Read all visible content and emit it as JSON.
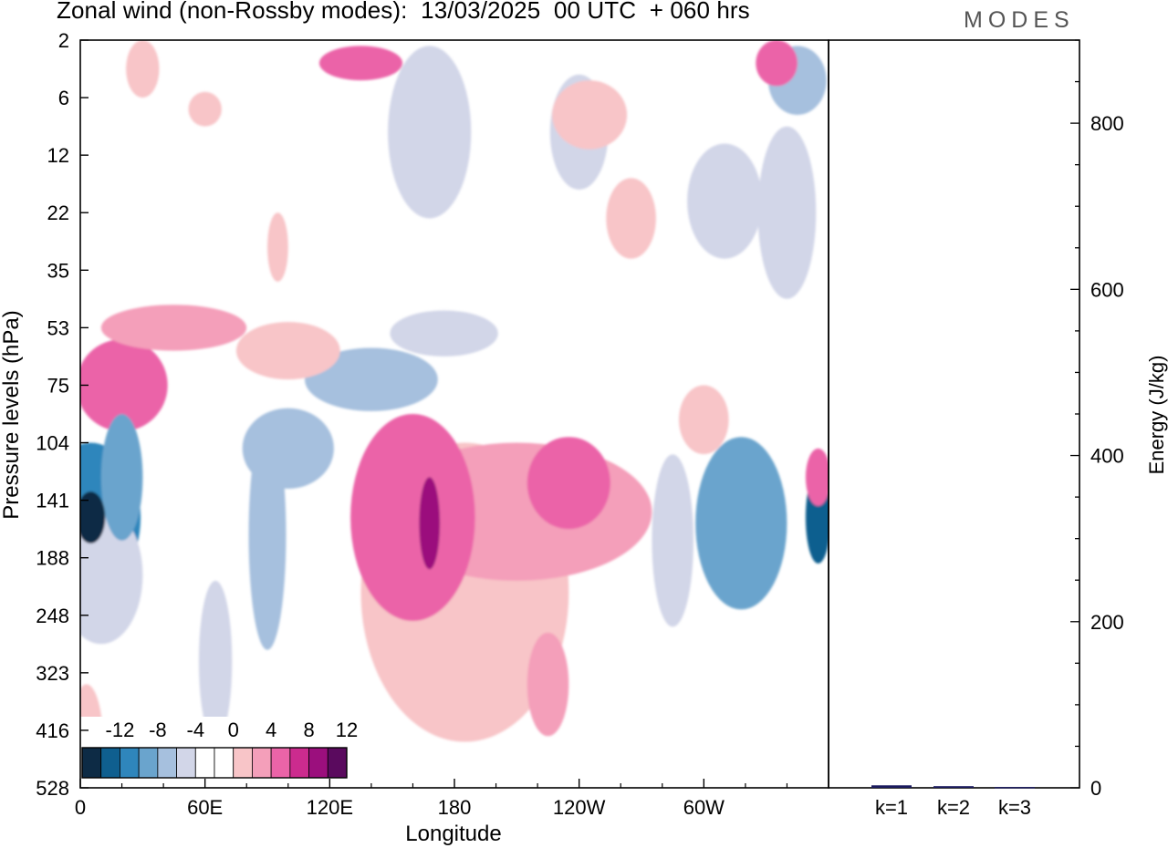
{
  "header": {
    "title": "Zonal wind (non-Rossby modes):  13/03/2025  00 UTC  + 060 hrs",
    "brand": "MODES"
  },
  "chart_data": {
    "type": "contour-and-bar",
    "title": "Zonal wind (non-Rossby modes):  13/03/2025  00 UTC  + 060 hrs",
    "xlabel": "Longitude",
    "ylabel": "Pressure levels (hPa)",
    "x_ticks": [
      "0",
      "60E",
      "120E",
      "180",
      "120W",
      "60W"
    ],
    "y_ticks": [
      "2",
      "6",
      "12",
      "22",
      "35",
      "53",
      "75",
      "104",
      "141",
      "188",
      "248",
      "323",
      "416",
      "528"
    ],
    "colorbar": {
      "labels": [
        "-12",
        "-8",
        "-4",
        "0",
        "4",
        "8",
        "12"
      ],
      "colors": [
        "#0d2b45",
        "#0f5f8f",
        "#2f86bc",
        "#6aa4cd",
        "#a6c0de",
        "#d2d6e8",
        "#ffffff",
        "#ffffff",
        "#f8c5c8",
        "#f49fba",
        "#eb64a8",
        "#cc2b8e",
        "#9b0f7d",
        "#5a0a5e"
      ]
    },
    "energy_axis": {
      "label": "Energy (J/kg)",
      "ticks": [
        0,
        200,
        400,
        600,
        800
      ],
      "ylim": [
        0,
        900
      ],
      "categories": [
        "k=1",
        "k=2",
        "k=3"
      ],
      "values": [
        3,
        2,
        1
      ],
      "bar_color": "#1a1a5e"
    },
    "contour_regions": [
      {
        "lon": 5,
        "lev": 8.3,
        "v": -9,
        "rx": 24,
        "ry": 1.3
      },
      {
        "lon": 5,
        "lev": 8.3,
        "v": -12.5,
        "rx": 7,
        "ry": 0.45
      },
      {
        "lon": 20,
        "lev": 7.6,
        "v": -6.5,
        "rx": 10,
        "ry": 1.1
      },
      {
        "lon": 10,
        "lev": 9.3,
        "v": -4,
        "rx": 20,
        "ry": 1.2
      },
      {
        "lon": 100,
        "lev": 7.1,
        "v": -6,
        "rx": 22,
        "ry": 0.7
      },
      {
        "lon": 140,
        "lev": 5.9,
        "v": -4.5,
        "rx": 32,
        "ry": 0.55
      },
      {
        "lon": 90,
        "lev": 8.6,
        "v": -5,
        "rx": 9,
        "ry": 2.0
      },
      {
        "lon": 65,
        "lev": 10.8,
        "v": -3,
        "rx": 8,
        "ry": 1.4
      },
      {
        "lon": 175,
        "lev": 5.1,
        "v": -2.5,
        "rx": 26,
        "ry": 0.4
      },
      {
        "lon": 168,
        "lev": 1.6,
        "v": -3,
        "rx": 20,
        "ry": 1.5
      },
      {
        "lon": 318,
        "lev": 8.4,
        "v": -7,
        "rx": 22,
        "ry": 1.5
      },
      {
        "lon": 355,
        "lev": 8.3,
        "v": -10.5,
        "rx": 6,
        "ry": 0.8
      },
      {
        "lon": 285,
        "lev": 8.7,
        "v": -4,
        "rx": 10,
        "ry": 1.5
      },
      {
        "lon": 310,
        "lev": 2.8,
        "v": -3,
        "rx": 18,
        "ry": 1.0
      },
      {
        "lon": 345,
        "lev": 0.7,
        "v": -4.5,
        "rx": 14,
        "ry": 0.6
      },
      {
        "lon": 340,
        "lev": 3.0,
        "v": -3,
        "rx": 14,
        "ry": 1.5
      },
      {
        "lon": 240,
        "lev": 1.6,
        "v": -2.5,
        "rx": 14,
        "ry": 1.0
      },
      {
        "lon": 160,
        "lev": 8.3,
        "v": 6.5,
        "rx": 30,
        "ry": 1.8
      },
      {
        "lon": 168,
        "lev": 8.4,
        "v": 10.5,
        "rx": 5,
        "ry": 0.8
      },
      {
        "lon": 210,
        "lev": 8.2,
        "v": 4.5,
        "rx": 65,
        "ry": 1.2
      },
      {
        "lon": 185,
        "lev": 9.6,
        "v": 3,
        "rx": 50,
        "ry": 2.6
      },
      {
        "lon": 225,
        "lev": 11.2,
        "v": 5.5,
        "rx": 10,
        "ry": 0.9
      },
      {
        "lon": 235,
        "lev": 7.7,
        "v": 6.5,
        "rx": 20,
        "ry": 0.8
      },
      {
        "lon": 20,
        "lev": 6.0,
        "v": 7,
        "rx": 22,
        "ry": 0.8
      },
      {
        "lon": 45,
        "lev": 5.0,
        "v": 4,
        "rx": 35,
        "ry": 0.4
      },
      {
        "lon": 100,
        "lev": 5.4,
        "v": 3,
        "rx": 25,
        "ry": 0.5
      },
      {
        "lon": 135,
        "lev": 0.4,
        "v": 7,
        "rx": 20,
        "ry": 0.3
      },
      {
        "lon": 245,
        "lev": 1.3,
        "v": 3,
        "rx": 18,
        "ry": 0.6
      },
      {
        "lon": 335,
        "lev": 0.4,
        "v": 7,
        "rx": 10,
        "ry": 0.4
      },
      {
        "lon": 265,
        "lev": 3.1,
        "v": 3,
        "rx": 12,
        "ry": 0.7
      },
      {
        "lon": 300,
        "lev": 6.6,
        "v": 3,
        "rx": 12,
        "ry": 0.6
      },
      {
        "lon": 3,
        "lev": 12.2,
        "v": 3,
        "rx": 8,
        "ry": 1.0
      },
      {
        "lon": 355,
        "lev": 7.6,
        "v": 6,
        "rx": 6,
        "ry": 0.5
      },
      {
        "lon": 30,
        "lev": 0.5,
        "v": 3,
        "rx": 8,
        "ry": 0.5
      },
      {
        "lon": 60,
        "lev": 1.2,
        "v": 3,
        "rx": 8,
        "ry": 0.3
      },
      {
        "lon": 95,
        "lev": 3.6,
        "v": 3,
        "rx": 5,
        "ry": 0.6
      }
    ]
  }
}
